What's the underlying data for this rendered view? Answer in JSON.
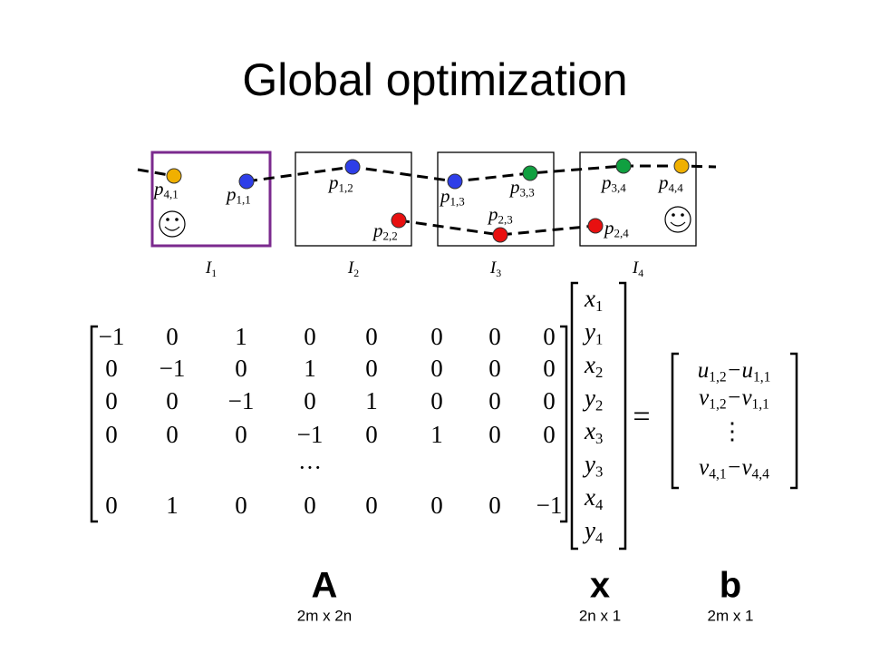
{
  "title": "Global optimization",
  "frames": [
    {
      "letter": "I",
      "sub": "1"
    },
    {
      "letter": "I",
      "sub": "2"
    },
    {
      "letter": "I",
      "sub": "3"
    },
    {
      "letter": "I",
      "sub": "4"
    }
  ],
  "points": [
    {
      "letter": "p",
      "sub": "4,1"
    },
    {
      "letter": "p",
      "sub": "1,1"
    },
    {
      "letter": "p",
      "sub": "1,2"
    },
    {
      "letter": "p",
      "sub": "2,2"
    },
    {
      "letter": "p",
      "sub": "1,3"
    },
    {
      "letter": "p",
      "sub": "3,3"
    },
    {
      "letter": "p",
      "sub": "2,3"
    },
    {
      "letter": "p",
      "sub": "3,4"
    },
    {
      "letter": "p",
      "sub": "4,4"
    },
    {
      "letter": "p",
      "sub": "2,4"
    }
  ],
  "matrix_a": {
    "rows": [
      [
        "−1",
        "0",
        "1",
        "0",
        "0",
        "0",
        "0",
        "0"
      ],
      [
        "0",
        "−1",
        "0",
        "1",
        "0",
        "0",
        "0",
        "0"
      ],
      [
        "0",
        "0",
        "−1",
        "0",
        "1",
        "0",
        "0",
        "0"
      ],
      [
        "0",
        "0",
        "0",
        "−1",
        "0",
        "1",
        "0",
        "0"
      ],
      [
        "0",
        "1",
        "0",
        "0",
        "0",
        "0",
        "0",
        "−1"
      ]
    ],
    "ellipsis": "···"
  },
  "vector_x": [
    {
      "letter": "x",
      "sub": "1"
    },
    {
      "letter": "y",
      "sub": "1"
    },
    {
      "letter": "x",
      "sub": "2"
    },
    {
      "letter": "y",
      "sub": "2"
    },
    {
      "letter": "x",
      "sub": "3"
    },
    {
      "letter": "y",
      "sub": "3"
    },
    {
      "letter": "x",
      "sub": "4"
    },
    {
      "letter": "y",
      "sub": "4"
    }
  ],
  "equals": "=",
  "vector_b": {
    "rows": [
      {
        "a": "u",
        "a_sub": "1,2",
        "op": "−",
        "b": "u",
        "b_sub": "1,1"
      },
      {
        "a": "v",
        "a_sub": "1,2",
        "op": "−",
        "b": "v",
        "b_sub": "1,1"
      },
      {
        "a": "v",
        "a_sub": "4,1",
        "op": "−",
        "b": "v",
        "b_sub": "4,4"
      }
    ],
    "ellipsis": "⋮"
  },
  "labels": [
    {
      "name": "A",
      "size": "2m x 2n"
    },
    {
      "name": "x",
      "size": "2n x 1"
    },
    {
      "name": "b",
      "size": "2m x 1"
    }
  ]
}
